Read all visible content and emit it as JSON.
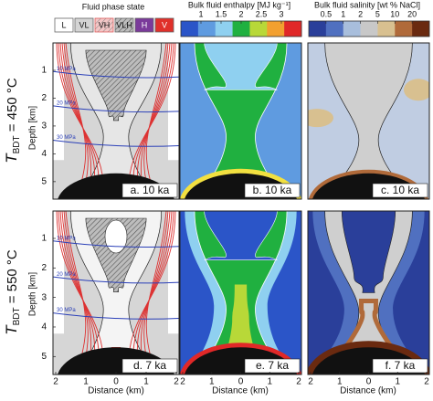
{
  "figure": {
    "rows": [
      {
        "symbol": "T",
        "subscript": "BDT",
        "rest": " = 450 °C"
      },
      {
        "symbol": "T",
        "subscript": "BDT",
        "rest": " = 550 °C"
      }
    ],
    "phase_legend": {
      "title": "Fluid phase state",
      "items": [
        "L",
        "VL",
        "VH",
        "VLH",
        "H",
        "V"
      ]
    },
    "enthalpy_bar": {
      "title": "Bulk fluid enthalpy [MJ kg⁻¹]",
      "ticks": [
        "1",
        "1.5",
        "2",
        "2.5",
        "3"
      ]
    },
    "salinity_bar": {
      "title": "Bulk fluid salinity [wt % NaCl]",
      "ticks": [
        "0.5",
        "1",
        "2",
        "5",
        "10",
        "20"
      ]
    },
    "panels": [
      {
        "label": "a. 10 ka"
      },
      {
        "label": "b. 10 ka"
      },
      {
        "label": "c. 10 ka"
      },
      {
        "label": "d. 7 ka"
      },
      {
        "label": "e. 7 ka"
      },
      {
        "label": "f. 7 ka"
      }
    ],
    "depth_axis": {
      "label": "Depth [km]",
      "ticks": [
        "1",
        "2",
        "3",
        "4",
        "5"
      ]
    },
    "distance_axis": {
      "label": "Distance (km)",
      "ticks": [
        "2",
        "1",
        "0",
        "1",
        "2"
      ]
    },
    "isobars": [
      "10 MPa",
      "20 MPa",
      "30 MPa"
    ]
  }
}
